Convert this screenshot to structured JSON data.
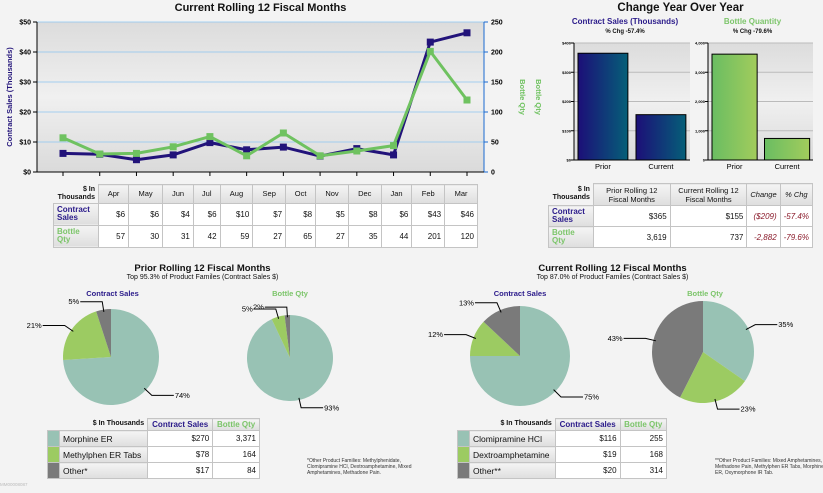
{
  "colors": {
    "sales": "#22137a",
    "qty": "#6fc260",
    "teal": "#98c2b4",
    "lime": "#9ccb62",
    "gray": "#7a7a7a"
  },
  "chart_data": [
    {
      "type": "line",
      "title": "Current Rolling 12 Fiscal Months",
      "ylabel": "Contract Sales (Thousands)",
      "y2label": "Bottle Qty",
      "ylim": [
        0,
        50
      ],
      "y2lim": [
        0,
        250
      ],
      "yticks": [
        "$0",
        "$10",
        "$20",
        "$30",
        "$40",
        "$50"
      ],
      "y2ticks": [
        "0",
        "50",
        "100",
        "150",
        "200",
        "250"
      ],
      "grid": true,
      "categories": [
        "Apr",
        "May",
        "Jun",
        "Jul",
        "Aug",
        "Sep",
        "Oct",
        "Nov",
        "Dec",
        "Jan",
        "Feb",
        "Mar"
      ],
      "series": [
        {
          "name": "Contract Sales",
          "axis": "left",
          "values": [
            6.2,
            5.9,
            4.1,
            5.7,
            9.8,
            7.4,
            8.3,
            5.3,
            7.8,
            5.7,
            43.3,
            46.4
          ]
        },
        {
          "name": "Bottle Qty",
          "axis": "right",
          "values": [
            57,
            30,
            31,
            42,
            59,
            27,
            65,
            27,
            35,
            44,
            201,
            120
          ]
        }
      ]
    },
    {
      "type": "bar",
      "title": "Contract Sales (Thousands)",
      "subtitle": "% Chg -57.4%",
      "categories": [
        "Prior",
        "Current"
      ],
      "values": [
        365,
        155
      ],
      "ylim": [
        0,
        400
      ],
      "yticks": [
        "$0",
        "$100",
        "$200",
        "$300",
        "$400"
      ]
    },
    {
      "type": "bar",
      "title": "Bottle Quantity",
      "subtitle": "% Chg -79.6%",
      "categories": [
        "Prior",
        "Current"
      ],
      "values": [
        3619,
        737
      ],
      "ylim": [
        0,
        4000
      ],
      "yticks": [
        "0",
        "1,000",
        "2,000",
        "3,000",
        "4,000"
      ]
    },
    {
      "type": "pie",
      "title": "Contract Sales",
      "labels": [
        "Morphine ER",
        "Methylphen ER Tabs",
        "Other*"
      ],
      "values": [
        74,
        21,
        5
      ]
    },
    {
      "type": "pie",
      "title": "Bottle Qty",
      "labels": [
        "Morphine ER",
        "Methylphen ER Tabs",
        "Other*"
      ],
      "values": [
        93,
        5,
        2
      ]
    },
    {
      "type": "pie",
      "title": "Contract Sales",
      "labels": [
        "Clomipramine HCl",
        "Dextroamphetamine",
        "Other**"
      ],
      "values": [
        75,
        12,
        13
      ]
    },
    {
      "type": "pie",
      "title": "Bottle Qty",
      "labels": [
        "Clomipramine HCl",
        "Dextroamphetamine",
        "Other**"
      ],
      "values": [
        35,
        23,
        43
      ]
    }
  ],
  "yoy": {
    "title": "Change Year Over Year"
  },
  "monthly_table": {
    "corner": "$ In Thousands",
    "rows": [
      {
        "label": "Contract Sales",
        "values": [
          "$6",
          "$6",
          "$4",
          "$6",
          "$10",
          "$7",
          "$8",
          "$5",
          "$8",
          "$6",
          "$43",
          "$46"
        ]
      },
      {
        "label": "Bottle Qty",
        "values": [
          "57",
          "30",
          "31",
          "42",
          "59",
          "27",
          "65",
          "27",
          "35",
          "44",
          "201",
          "120"
        ]
      }
    ]
  },
  "yoy_table": {
    "corner": "$ In Thousands",
    "headers": [
      "Prior Rolling 12 Fiscal Months",
      "Current Rolling 12 Fiscal Months",
      "Change",
      "% Chg"
    ],
    "rows": [
      {
        "label": "Contract Sales",
        "values": [
          "$365",
          "$155",
          "($209)",
          "-57.4%"
        ]
      },
      {
        "label": "Bottle Qty",
        "values": [
          "3,619",
          "737",
          "-2,882",
          "-79.6%"
        ]
      }
    ]
  },
  "prior": {
    "title": "Prior Rolling 12 Fiscal Months",
    "subtitle": "Top 95.3% of Product Familes (Contract Sales $)",
    "table": {
      "corner": "$ In Thousands",
      "h1": "Contract Sales",
      "h2": "Bottle Qty",
      "rows": [
        {
          "label": "Morphine ER",
          "sales": "$270",
          "qty": "3,371"
        },
        {
          "label": "Methylphen ER Tabs",
          "sales": "$78",
          "qty": "164"
        },
        {
          "label": "Other*",
          "sales": "$17",
          "qty": "84"
        }
      ]
    },
    "footnote": "*Other Product Families: Methylphenidate, Clomipramine HCl, Dextroamphetamine, Mixed Amphetamines, Methadone Pain."
  },
  "current": {
    "title": "Current Rolling 12 Fiscal Months",
    "subtitle": "Top 87.0% of Product Familes (Contract Sales $)",
    "table": {
      "corner": "$ In Thousands",
      "h1": "Contract Sales",
      "h2": "Bottle Qty",
      "rows": [
        {
          "label": "Clomipramine HCl",
          "sales": "$116",
          "qty": "255"
        },
        {
          "label": "Dextroamphetamine",
          "sales": "$19",
          "qty": "168"
        },
        {
          "label": "Other**",
          "sales": "$20",
          "qty": "314"
        }
      ]
    },
    "footnote": "**Other Product Families: Mixed Amphetamines, Methadone Pain, Methylphen ER Tabs, Morphine ER, Oxymorphone IR Tab."
  },
  "report_id": "MM00008087"
}
